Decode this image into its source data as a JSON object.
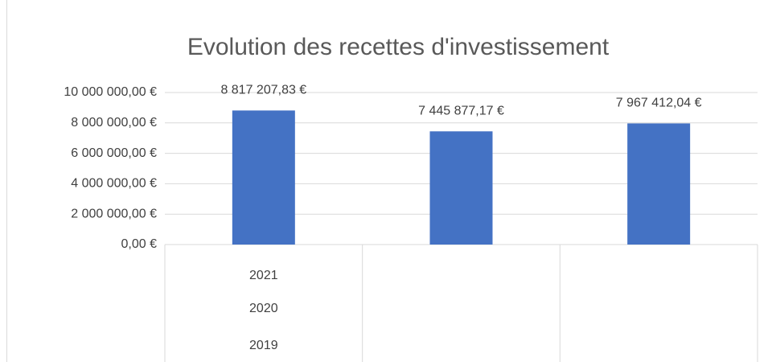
{
  "chart_data": {
    "type": "bar",
    "title": "Evolution des recettes d'investissement",
    "categories": [
      "2021",
      "2020",
      "2019"
    ],
    "values": [
      8817207.83,
      7445877.17,
      7967412.04
    ],
    "value_labels": [
      "8 817 207,83 €",
      "7 445 877,17 €",
      "7 967 412,04 €"
    ],
    "color": "#4472c4",
    "ylim": [
      0,
      10000000
    ],
    "yticks": [
      {
        "value": 0,
        "label": "0,00 €"
      },
      {
        "value": 2000000,
        "label": "2 000 000,00 €"
      },
      {
        "value": 4000000,
        "label": "4 000 000,00 €"
      },
      {
        "value": 6000000,
        "label": "6 000 000,00 €"
      },
      {
        "value": 8000000,
        "label": "8 000 000,00 €"
      },
      {
        "value": 10000000,
        "label": "10 000 000,00 €"
      }
    ],
    "grid": true
  }
}
